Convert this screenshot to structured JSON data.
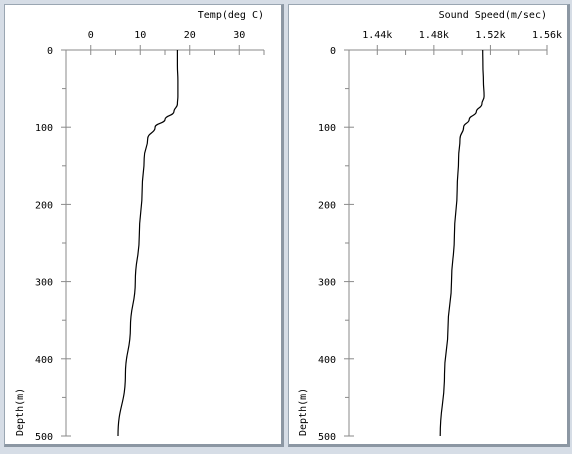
{
  "chart_data": [
    {
      "type": "line",
      "title": "",
      "xlabel": "Temp(deg C)",
      "ylabel": "Depth(m)",
      "xlim": [
        -5,
        35
      ],
      "ylim": [
        0,
        500
      ],
      "y_inverted": true,
      "x_axis_position": "top",
      "xticks": [
        0,
        10,
        20,
        30
      ],
      "xtick_labels": [
        "0",
        "10",
        "20",
        "30"
      ],
      "yticks": [
        0,
        100,
        200,
        300,
        400,
        500
      ],
      "ytick_labels": [
        "0",
        "100",
        "200",
        "300",
        "400",
        "500"
      ],
      "grid": false,
      "series": [
        {
          "color": "#000000",
          "x": [
            17.5,
            17.5,
            17.6,
            17.6,
            17.5,
            16.8,
            15.0,
            13.0,
            11.5,
            10.8,
            10.4,
            9.8,
            9.0,
            8.0,
            7.0,
            5.5
          ],
          "y": [
            0,
            20,
            40,
            60,
            70,
            80,
            90,
            100,
            115,
            140,
            180,
            240,
            300,
            360,
            420,
            500
          ]
        }
      ]
    },
    {
      "type": "line",
      "title": "",
      "xlabel": "Sound Speed(m/sec)",
      "ylabel": "Depth(m)",
      "xlim": [
        1420,
        1560
      ],
      "ylim": [
        0,
        500
      ],
      "y_inverted": true,
      "x_axis_position": "top",
      "xticks": [
        1440,
        1480,
        1520,
        1560
      ],
      "xtick_labels": [
        "1.44k",
        "1.48k",
        "1.52k",
        "1.56k"
      ],
      "yticks": [
        0,
        100,
        200,
        300,
        400,
        500
      ],
      "ytick_labels": [
        "0",
        "100",
        "200",
        "300",
        "400",
        "500"
      ],
      "grid": false,
      "series": [
        {
          "color": "#000000",
          "x": [
            1514.5,
            1514.7,
            1515.0,
            1515.5,
            1514.0,
            1510.0,
            1505.0,
            1501.0,
            1498.5,
            1497.5,
            1496.5,
            1494.5,
            1492.5,
            1490.0,
            1487.5,
            1484.5
          ],
          "y": [
            0,
            20,
            40,
            60,
            70,
            80,
            90,
            100,
            115,
            140,
            180,
            240,
            300,
            360,
            420,
            500
          ]
        }
      ]
    }
  ]
}
